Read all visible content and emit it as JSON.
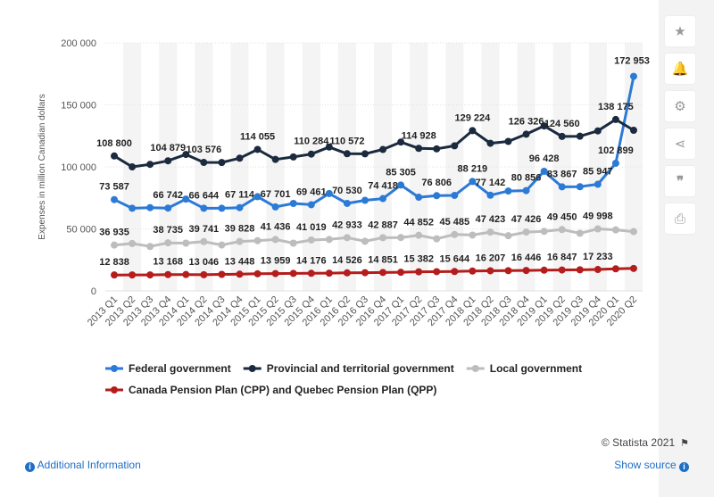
{
  "chart_data": {
    "type": "line",
    "ylabel": "Expenses in million Canadian dollars",
    "ylim": [
      0,
      200000
    ],
    "yticks": [
      0,
      50000,
      100000,
      150000,
      200000
    ],
    "ytick_labels": [
      "0",
      "50 000",
      "100 000",
      "150 000",
      "200 000"
    ],
    "grid": true,
    "legend_placement": "bottom",
    "categories": [
      "2013 Q1",
      "2013 Q2",
      "2013 Q3",
      "2013 Q4",
      "2014 Q1",
      "2014 Q2",
      "2014 Q3",
      "2014 Q4",
      "2015 Q1",
      "2015 Q2",
      "2015 Q3",
      "2015 Q4",
      "2016 Q1",
      "2016 Q2",
      "2016 Q3",
      "2016 Q4",
      "2017 Q1",
      "2017 Q2",
      "2017 Q3",
      "2017 Q4",
      "2018 Q1",
      "2018 Q2",
      "2018 Q3",
      "2018 Q4",
      "2019 Q1",
      "2019 Q2",
      "2019 Q3",
      "2019 Q4",
      "2020 Q1",
      "2020 Q2"
    ],
    "series": [
      {
        "name": "Federal government",
        "color": "#2b7ad6",
        "values": [
          73587,
          66600,
          67100,
          66742,
          74000,
          66644,
          66600,
          67114,
          76000,
          67701,
          70500,
          69461,
          78500,
          70530,
          73000,
          74418,
          85305,
          75500,
          76806,
          77000,
          88219,
          77142,
          80500,
          80856,
          96428,
          83867,
          84000,
          85947,
          102899,
          172953
        ],
        "labels": [
          "73 587",
          "",
          "",
          "66 742",
          "",
          "66 644",
          "",
          "67 114",
          "",
          "67 701",
          "",
          "69 461",
          "",
          "70 530",
          "",
          "74 418",
          "85 305",
          "",
          "76 806",
          "",
          "88 219",
          "77 142",
          "",
          "80 856",
          "96 428",
          "83 867",
          "",
          "85 947",
          "102 899",
          "172 953"
        ]
      },
      {
        "name": "Provincial and territorial government",
        "color": "#1b2a3e",
        "values": [
          108800,
          100000,
          102000,
          104879,
          110000,
          103576,
          103500,
          107000,
          114055,
          106000,
          108000,
          110284,
          116000,
          110572,
          110500,
          114000,
          120000,
          114928,
          114500,
          117000,
          129224,
          119000,
          120500,
          126326,
          133000,
          124560,
          124700,
          129000,
          138175,
          129500
        ],
        "labels": [
          "108 800",
          "",
          "",
          "104 879",
          "",
          "103 576",
          "",
          "",
          "114 055",
          "",
          "",
          "110 284",
          "",
          "110 572",
          "",
          "",
          "",
          "114 928",
          "",
          "",
          "129 224",
          "",
          "",
          "126 326",
          "",
          "124 560",
          "",
          "",
          "138 175",
          ""
        ]
      },
      {
        "name": "Local government",
        "color": "#bdbdbd",
        "values": [
          36935,
          38200,
          35800,
          38735,
          38500,
          39741,
          37000,
          39828,
          40500,
          41436,
          38500,
          41019,
          41500,
          42933,
          40000,
          42887,
          43000,
          44852,
          42000,
          45485,
          45000,
          47423,
          44500,
          47426,
          48000,
          49450,
          46500,
          49998,
          49200,
          47800
        ],
        "labels": [
          "36 935",
          "",
          "",
          "38 735",
          "",
          "39 741",
          "",
          "39 828",
          "",
          "41 436",
          "",
          "41 019",
          "",
          "42 933",
          "",
          "42 887",
          "",
          "44 852",
          "",
          "45 485",
          "",
          "47 423",
          "",
          "47 426",
          "",
          "49 450",
          "",
          "49 998",
          "",
          ""
        ]
      },
      {
        "name": "Canada Pension Plan (CPP) and Quebec Pension Plan (QPP)",
        "color": "#b51c1c",
        "values": [
          12838,
          12850,
          12900,
          13168,
          13200,
          13046,
          13300,
          13448,
          13800,
          13959,
          14100,
          14176,
          14300,
          14526,
          14700,
          14851,
          15000,
          15382,
          15500,
          15644,
          16000,
          16207,
          16300,
          16446,
          16700,
          16847,
          17000,
          17233,
          17800,
          18100
        ],
        "labels": [
          "12 838",
          "",
          "",
          "13 168",
          "",
          "13 046",
          "",
          "13 448",
          "",
          "13 959",
          "",
          "14 176",
          "",
          "14 526",
          "",
          "14 851",
          "",
          "15 382",
          "",
          "15 644",
          "",
          "16 207",
          "",
          "16 446",
          "",
          "16 847",
          "",
          "17 233",
          "",
          ""
        ]
      }
    ]
  },
  "sidebar": {
    "icons": [
      "star-icon",
      "bell-icon",
      "gear-icon",
      "share-icon",
      "quote-icon",
      "print-icon"
    ]
  },
  "footer": {
    "copyright": "© Statista 2021",
    "additional_info": "Additional Information",
    "show_source": "Show source"
  }
}
